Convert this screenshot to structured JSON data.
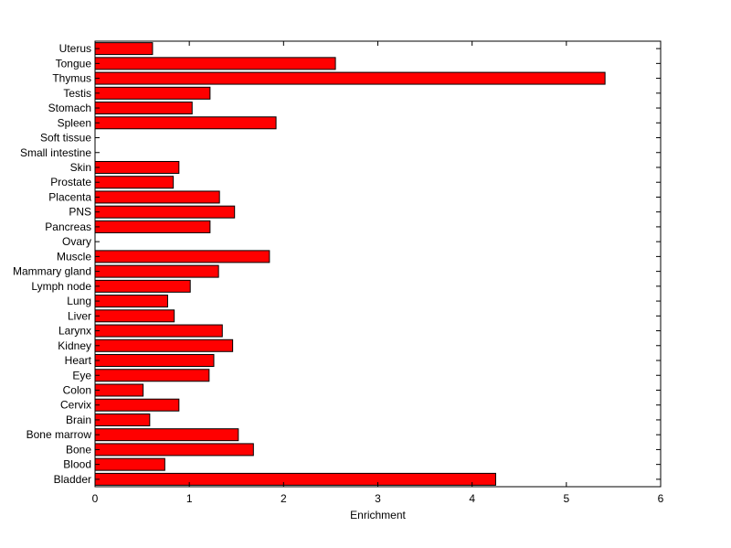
{
  "chart_data": {
    "type": "bar",
    "orientation": "horizontal",
    "categories": [
      "Bladder",
      "Blood",
      "Bone",
      "Bone marrow",
      "Brain",
      "Cervix",
      "Colon",
      "Eye",
      "Heart",
      "Kidney",
      "Larynx",
      "Liver",
      "Lung",
      "Lymph node",
      "Mammary gland",
      "Muscle",
      "Ovary",
      "Pancreas",
      "PNS",
      "Placenta",
      "Prostate",
      "Skin",
      "Small intestine",
      "Soft tissue",
      "Spleen",
      "Stomach",
      "Testis",
      "Thymus",
      "Tongue",
      "Uterus"
    ],
    "values": [
      4.25,
      0.74,
      1.68,
      1.52,
      0.58,
      0.89,
      0.51,
      1.21,
      1.26,
      1.46,
      1.35,
      0.84,
      0.77,
      1.01,
      1.31,
      1.85,
      0,
      1.22,
      1.48,
      1.32,
      0.83,
      0.89,
      0,
      0,
      1.92,
      1.03,
      1.22,
      5.41,
      2.55,
      0.61
    ],
    "xlabel": "Enrichment",
    "ylabel": "",
    "xlim": [
      0,
      6
    ],
    "xticks": [
      "0",
      "1",
      "2",
      "3",
      "4",
      "5",
      "6"
    ],
    "bar_color": "#ff0000",
    "edge_color": "#000000",
    "grid": false
  }
}
